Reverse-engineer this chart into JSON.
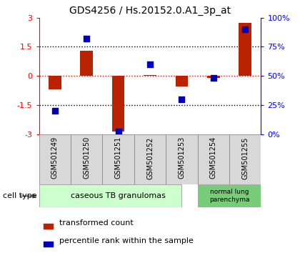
{
  "title": "GDS4256 / Hs.20152.0.A1_3p_at",
  "samples": [
    "GSM501249",
    "GSM501250",
    "GSM501251",
    "GSM501252",
    "GSM501253",
    "GSM501254",
    "GSM501255"
  ],
  "transformed_count": [
    -0.7,
    1.3,
    -2.85,
    0.05,
    -0.55,
    -0.1,
    2.75
  ],
  "percentile_rank": [
    20,
    82,
    2,
    60,
    30,
    48,
    90
  ],
  "ylim_left": [
    -3,
    3
  ],
  "ylim_right": [
    0,
    100
  ],
  "yticks_left": [
    -3,
    -1.5,
    0,
    1.5,
    3
  ],
  "ytick_labels_right": [
    "0%",
    "25%",
    "50%",
    "75%",
    "100%"
  ],
  "yticks_right": [
    0,
    25,
    50,
    75,
    100
  ],
  "bar_color": "#bb2200",
  "dot_color": "#0000bb",
  "bar_width": 0.4,
  "dot_size": 35,
  "group1_label": "caseous TB granulomas",
  "group1_color": "#ccffcc",
  "group1_darker_color": "#88dd88",
  "group2_label": "normal lung\nparenchyma",
  "group2_color": "#77cc77",
  "legend_bar_label": "transformed count",
  "legend_dot_label": "percentile rank within the sample",
  "cell_type_label": "cell type",
  "title_fontsize": 10,
  "tick_fontsize": 8,
  "label_fontsize": 8,
  "sample_fontsize": 7
}
